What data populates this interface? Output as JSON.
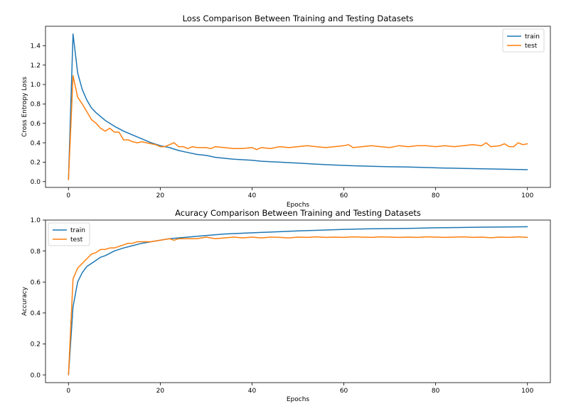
{
  "chart_data": [
    {
      "type": "line",
      "title": "Loss Comparison Between Training and Testing Datasets",
      "xlabel": "Epochs",
      "ylabel": "Cross Entropy Loss",
      "xlim": [
        -5,
        105
      ],
      "ylim": [
        -0.06,
        1.6
      ],
      "xticks": [
        0,
        20,
        40,
        60,
        80,
        100
      ],
      "yticks": [
        0.0,
        0.2,
        0.4,
        0.6,
        0.8,
        1.0,
        1.2,
        1.4
      ],
      "ytick_format": 1,
      "grid": false,
      "legend_position": "top-right",
      "series": [
        {
          "name": "train",
          "color": "#1f77b4",
          "points": [
            [
              0,
              0.02
            ],
            [
              1,
              1.52
            ],
            [
              2,
              1.12
            ],
            [
              3,
              0.95
            ],
            [
              4,
              0.84
            ],
            [
              5,
              0.76
            ],
            [
              6,
              0.71
            ],
            [
              7,
              0.67
            ],
            [
              8,
              0.63
            ],
            [
              10,
              0.57
            ],
            [
              12,
              0.52
            ],
            [
              14,
              0.48
            ],
            [
              16,
              0.44
            ],
            [
              18,
              0.4
            ],
            [
              20,
              0.37
            ],
            [
              22,
              0.35
            ],
            [
              24,
              0.32
            ],
            [
              26,
              0.3
            ],
            [
              28,
              0.28
            ],
            [
              30,
              0.27
            ],
            [
              32,
              0.25
            ],
            [
              34,
              0.24
            ],
            [
              36,
              0.23
            ],
            [
              38,
              0.225
            ],
            [
              40,
              0.22
            ],
            [
              42,
              0.21
            ],
            [
              44,
              0.205
            ],
            [
              46,
              0.2
            ],
            [
              48,
              0.195
            ],
            [
              50,
              0.19
            ],
            [
              54,
              0.18
            ],
            [
              58,
              0.17
            ],
            [
              62,
              0.163
            ],
            [
              66,
              0.158
            ],
            [
              70,
              0.153
            ],
            [
              74,
              0.15
            ],
            [
              78,
              0.145
            ],
            [
              82,
              0.14
            ],
            [
              86,
              0.136
            ],
            [
              90,
              0.132
            ],
            [
              94,
              0.128
            ],
            [
              98,
              0.125
            ],
            [
              100,
              0.123
            ]
          ]
        },
        {
          "name": "test",
          "color": "#ff7f0e",
          "points": [
            [
              0,
              0.02
            ],
            [
              1,
              1.09
            ],
            [
              2,
              0.87
            ],
            [
              3,
              0.8
            ],
            [
              4,
              0.72
            ],
            [
              5,
              0.64
            ],
            [
              6,
              0.6
            ],
            [
              7,
              0.55
            ],
            [
              8,
              0.52
            ],
            [
              9,
              0.55
            ],
            [
              10,
              0.51
            ],
            [
              11,
              0.51
            ],
            [
              12,
              0.43
            ],
            [
              13,
              0.43
            ],
            [
              14,
              0.41
            ],
            [
              15,
              0.4
            ],
            [
              16,
              0.41
            ],
            [
              17,
              0.4
            ],
            [
              18,
              0.39
            ],
            [
              19,
              0.38
            ],
            [
              20,
              0.36
            ],
            [
              21,
              0.36
            ],
            [
              22,
              0.38
            ],
            [
              23,
              0.4
            ],
            [
              24,
              0.36
            ],
            [
              25,
              0.36
            ],
            [
              26,
              0.34
            ],
            [
              27,
              0.36
            ],
            [
              28,
              0.35
            ],
            [
              30,
              0.35
            ],
            [
              31,
              0.34
            ],
            [
              32,
              0.36
            ],
            [
              34,
              0.35
            ],
            [
              36,
              0.34
            ],
            [
              38,
              0.34
            ],
            [
              40,
              0.35
            ],
            [
              41,
              0.33
            ],
            [
              42,
              0.35
            ],
            [
              44,
              0.34
            ],
            [
              46,
              0.36
            ],
            [
              48,
              0.35
            ],
            [
              50,
              0.36
            ],
            [
              52,
              0.37
            ],
            [
              54,
              0.36
            ],
            [
              56,
              0.35
            ],
            [
              58,
              0.36
            ],
            [
              60,
              0.37
            ],
            [
              61,
              0.38
            ],
            [
              62,
              0.35
            ],
            [
              64,
              0.36
            ],
            [
              66,
              0.37
            ],
            [
              68,
              0.36
            ],
            [
              70,
              0.35
            ],
            [
              72,
              0.37
            ],
            [
              74,
              0.36
            ],
            [
              76,
              0.37
            ],
            [
              78,
              0.37
            ],
            [
              80,
              0.36
            ],
            [
              82,
              0.37
            ],
            [
              84,
              0.36
            ],
            [
              86,
              0.37
            ],
            [
              88,
              0.38
            ],
            [
              90,
              0.37
            ],
            [
              91,
              0.4
            ],
            [
              92,
              0.36
            ],
            [
              94,
              0.37
            ],
            [
              95,
              0.39
            ],
            [
              96,
              0.36
            ],
            [
              97,
              0.36
            ],
            [
              98,
              0.4
            ],
            [
              99,
              0.38
            ],
            [
              100,
              0.39
            ]
          ]
        }
      ]
    },
    {
      "type": "line",
      "title": "Acuracy Comparison Between Training and Testing Datasets",
      "xlabel": "Epochs",
      "ylabel": "Accuracy",
      "xlim": [
        -5,
        105
      ],
      "ylim": [
        -0.05,
        1.0
      ],
      "xticks": [
        0,
        20,
        40,
        60,
        80,
        100
      ],
      "yticks": [
        0.0,
        0.2,
        0.4,
        0.6,
        0.8,
        1.0
      ],
      "ytick_format": 1,
      "grid": false,
      "legend_position": "top-left",
      "series": [
        {
          "name": "train",
          "color": "#1f77b4",
          "points": [
            [
              0,
              0.0
            ],
            [
              1,
              0.44
            ],
            [
              2,
              0.6
            ],
            [
              3,
              0.66
            ],
            [
              4,
              0.7
            ],
            [
              5,
              0.72
            ],
            [
              6,
              0.74
            ],
            [
              7,
              0.76
            ],
            [
              8,
              0.77
            ],
            [
              10,
              0.8
            ],
            [
              12,
              0.82
            ],
            [
              14,
              0.835
            ],
            [
              16,
              0.85
            ],
            [
              18,
              0.86
            ],
            [
              20,
              0.87
            ],
            [
              22,
              0.88
            ],
            [
              24,
              0.885
            ],
            [
              26,
              0.89
            ],
            [
              28,
              0.895
            ],
            [
              30,
              0.9
            ],
            [
              34,
              0.91
            ],
            [
              38,
              0.915
            ],
            [
              42,
              0.92
            ],
            [
              46,
              0.925
            ],
            [
              50,
              0.93
            ],
            [
              55,
              0.935
            ],
            [
              60,
              0.94
            ],
            [
              65,
              0.943
            ],
            [
              70,
              0.945
            ],
            [
              75,
              0.947
            ],
            [
              80,
              0.95
            ],
            [
              85,
              0.952
            ],
            [
              90,
              0.954
            ],
            [
              95,
              0.955
            ],
            [
              100,
              0.957
            ]
          ]
        },
        {
          "name": "test",
          "color": "#ff7f0e",
          "points": [
            [
              0,
              0.0
            ],
            [
              1,
              0.62
            ],
            [
              2,
              0.69
            ],
            [
              3,
              0.72
            ],
            [
              4,
              0.75
            ],
            [
              5,
              0.78
            ],
            [
              6,
              0.79
            ],
            [
              7,
              0.81
            ],
            [
              8,
              0.81
            ],
            [
              9,
              0.82
            ],
            [
              10,
              0.82
            ],
            [
              11,
              0.83
            ],
            [
              12,
              0.84
            ],
            [
              13,
              0.85
            ],
            [
              14,
              0.85
            ],
            [
              15,
              0.86
            ],
            [
              16,
              0.86
            ],
            [
              18,
              0.86
            ],
            [
              20,
              0.87
            ],
            [
              22,
              0.88
            ],
            [
              23,
              0.87
            ],
            [
              24,
              0.88
            ],
            [
              26,
              0.88
            ],
            [
              28,
              0.88
            ],
            [
              30,
              0.89
            ],
            [
              32,
              0.88
            ],
            [
              34,
              0.885
            ],
            [
              36,
              0.89
            ],
            [
              38,
              0.885
            ],
            [
              40,
              0.89
            ],
            [
              42,
              0.885
            ],
            [
              44,
              0.89
            ],
            [
              46,
              0.888
            ],
            [
              48,
              0.885
            ],
            [
              50,
              0.89
            ],
            [
              52,
              0.888
            ],
            [
              54,
              0.892
            ],
            [
              56,
              0.888
            ],
            [
              58,
              0.89
            ],
            [
              60,
              0.888
            ],
            [
              62,
              0.892
            ],
            [
              64,
              0.89
            ],
            [
              66,
              0.888
            ],
            [
              68,
              0.892
            ],
            [
              70,
              0.89
            ],
            [
              72,
              0.888
            ],
            [
              74,
              0.89
            ],
            [
              76,
              0.888
            ],
            [
              78,
              0.892
            ],
            [
              80,
              0.89
            ],
            [
              82,
              0.888
            ],
            [
              84,
              0.89
            ],
            [
              86,
              0.892
            ],
            [
              88,
              0.888
            ],
            [
              90,
              0.89
            ],
            [
              92,
              0.886
            ],
            [
              94,
              0.89
            ],
            [
              96,
              0.888
            ],
            [
              98,
              0.892
            ],
            [
              100,
              0.888
            ]
          ]
        }
      ]
    }
  ]
}
